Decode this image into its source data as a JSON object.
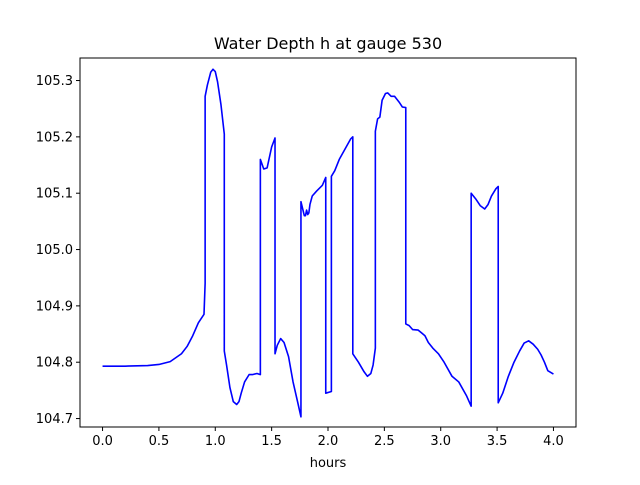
{
  "chart_data": {
    "type": "line",
    "title": "Water Depth h at gauge 530",
    "xlabel": "hours",
    "ylabel": "",
    "xlim": [
      -0.2,
      4.2
    ],
    "ylim": [
      104.685,
      105.34
    ],
    "x_ticks": [
      0.0,
      0.5,
      1.0,
      1.5,
      2.0,
      2.5,
      3.0,
      3.5,
      4.0
    ],
    "x_tick_labels": [
      "0.0",
      "0.5",
      "1.0",
      "1.5",
      "2.0",
      "2.5",
      "3.0",
      "3.5",
      "4.0"
    ],
    "y_ticks": [
      104.7,
      104.8,
      104.9,
      105.0,
      105.1,
      105.2,
      105.3
    ],
    "y_tick_labels": [
      "104.7",
      "104.8",
      "104.9",
      "105.0",
      "105.1",
      "105.2",
      "105.3"
    ],
    "grid": false,
    "series": [
      {
        "color": "#0000ff",
        "x": [
          0.0,
          0.2,
          0.4,
          0.5,
          0.6,
          0.7,
          0.75,
          0.8,
          0.85,
          0.9,
          0.91,
          0.91,
          0.93,
          0.96,
          0.98,
          1.0,
          1.02,
          1.05,
          1.08,
          1.08,
          1.1,
          1.13,
          1.16,
          1.19,
          1.21,
          1.23,
          1.26,
          1.3,
          1.33,
          1.37,
          1.4,
          1.4,
          1.43,
          1.46,
          1.5,
          1.53,
          1.53,
          1.55,
          1.58,
          1.61,
          1.65,
          1.69,
          1.73,
          1.76,
          1.76,
          1.79,
          1.8,
          1.81,
          1.82,
          1.83,
          1.84,
          1.86,
          1.9,
          1.95,
          1.98,
          1.98,
          2.03,
          2.03,
          2.06,
          2.1,
          2.15,
          2.2,
          2.22,
          2.22,
          2.27,
          2.32,
          2.35,
          2.38,
          2.4,
          2.42,
          2.42,
          2.44,
          2.46,
          2.48,
          2.51,
          2.53,
          2.56,
          2.59,
          2.63,
          2.66,
          2.69,
          2.69,
          2.72,
          2.75,
          2.8,
          2.83,
          2.86,
          2.89,
          2.93,
          2.98,
          3.03,
          3.1,
          3.16,
          3.23,
          3.27,
          3.27,
          3.31,
          3.35,
          3.39,
          3.42,
          3.45,
          3.49,
          3.51,
          3.51,
          3.55,
          3.6,
          3.65,
          3.7,
          3.74,
          3.78,
          3.82,
          3.86,
          3.89,
          3.92,
          3.95,
          4.0
        ],
        "y": [
          104.793,
          104.793,
          104.794,
          104.796,
          104.801,
          104.815,
          104.828,
          104.847,
          104.87,
          104.885,
          104.94,
          105.272,
          105.292,
          105.315,
          105.32,
          105.316,
          105.298,
          105.258,
          105.205,
          104.82,
          104.795,
          104.755,
          104.73,
          104.725,
          104.73,
          104.745,
          104.765,
          104.778,
          104.778,
          104.78,
          104.778,
          105.16,
          105.143,
          105.145,
          105.182,
          105.198,
          104.815,
          104.83,
          104.842,
          104.835,
          104.81,
          104.765,
          104.73,
          104.703,
          105.085,
          105.06,
          105.06,
          105.07,
          105.062,
          105.065,
          105.08,
          105.095,
          105.104,
          105.114,
          105.128,
          104.745,
          104.748,
          105.13,
          105.14,
          105.16,
          105.178,
          105.196,
          105.2,
          104.815,
          104.8,
          104.783,
          104.775,
          104.78,
          104.795,
          104.825,
          105.21,
          105.232,
          105.235,
          105.265,
          105.277,
          105.278,
          105.272,
          105.272,
          105.262,
          105.253,
          105.252,
          104.868,
          104.865,
          104.858,
          104.857,
          104.852,
          104.847,
          104.835,
          104.825,
          104.815,
          104.8,
          104.775,
          104.765,
          104.74,
          104.722,
          105.1,
          105.09,
          105.078,
          105.072,
          105.08,
          105.095,
          105.108,
          105.112,
          104.728,
          104.745,
          104.775,
          104.8,
          104.82,
          104.834,
          104.838,
          104.832,
          104.823,
          104.813,
          104.8,
          104.785,
          104.779
        ]
      }
    ]
  }
}
